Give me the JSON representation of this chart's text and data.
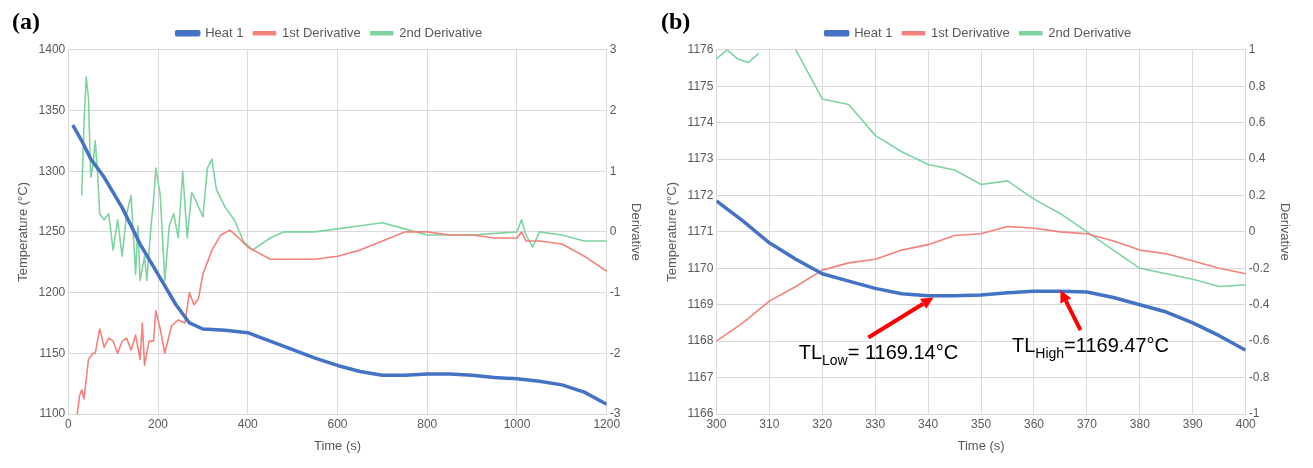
{
  "chart_data": [
    {
      "type": "line",
      "title": "(a)",
      "xlabel": "Time (s)",
      "ylabel": "Temperature (°C)",
      "y2label": "Derivative",
      "xlim": [
        0,
        1200
      ],
      "xticks": [
        0,
        200,
        400,
        600,
        800,
        1000,
        1200
      ],
      "ylim": [
        1100,
        1400
      ],
      "yticks": [
        1100,
        1150,
        1200,
        1250,
        1300,
        1350,
        1400
      ],
      "y2lim": [
        -3,
        3
      ],
      "y2ticks": [
        -3,
        -2,
        -1,
        0,
        1,
        2,
        3
      ],
      "grid": true,
      "legend": "top",
      "marker": "none",
      "line_style": "solid",
      "series": [
        {
          "name": "Heat 1",
          "color": "#4472c4",
          "x": [
            10,
            30,
            50,
            80,
            120,
            160,
            200,
            240,
            270,
            300,
            350,
            400,
            450,
            500,
            550,
            600,
            650,
            700,
            750,
            800,
            850,
            900,
            950,
            1000,
            1050,
            1100,
            1150,
            1200
          ],
          "values": [
            1338,
            1325,
            1310,
            1295,
            1270,
            1240,
            1215,
            1190,
            1175,
            1170,
            1169,
            1167,
            1160,
            1153,
            1146,
            1140,
            1135,
            1132,
            1132,
            1133,
            1133,
            1132,
            1130,
            1129,
            1127,
            1124,
            1118,
            1108
          ]
        },
        {
          "name": "1st Derivative",
          "color": "#f4817b",
          "axis": "y2",
          "x": [
            20,
            25,
            30,
            35,
            45,
            55,
            60,
            70,
            80,
            90,
            100,
            110,
            120,
            130,
            140,
            150,
            160,
            165,
            170,
            180,
            190,
            195,
            205,
            215,
            230,
            245,
            260,
            270,
            280,
            290,
            300,
            320,
            340,
            360,
            380,
            400,
            450,
            500,
            550,
            600,
            650,
            700,
            750,
            800,
            850,
            900,
            950,
            1000,
            1010,
            1020,
            1050,
            1100,
            1150,
            1200
          ],
          "values": [
            -3,
            -2.7,
            -2.6,
            -2.75,
            -2.1,
            -2,
            -2,
            -1.6,
            -1.9,
            -1.75,
            -1.8,
            -2,
            -1.8,
            -1.75,
            -1.95,
            -1.7,
            -2.1,
            -1.5,
            -2.2,
            -1.8,
            -1.8,
            -1.3,
            -1.6,
            -2,
            -1.55,
            -1.45,
            -1.5,
            -1,
            -1.2,
            -1.1,
            -0.7,
            -0.3,
            -0.05,
            0.03,
            -0.1,
            -0.25,
            -0.45,
            -0.45,
            -0.45,
            -0.4,
            -0.3,
            -0.15,
            0,
            0,
            -0.05,
            -0.05,
            -0.1,
            -0.1,
            0,
            -0.15,
            -0.15,
            -0.2,
            -0.4,
            -0.65
          ]
        },
        {
          "name": "2nd Derivative",
          "color": "#7fd3a0",
          "axis": "y2",
          "x": [
            30,
            35,
            40,
            45,
            50,
            55,
            60,
            65,
            70,
            80,
            90,
            100,
            110,
            120,
            130,
            140,
            150,
            155,
            160,
            170,
            175,
            185,
            190,
            195,
            205,
            215,
            225,
            235,
            245,
            255,
            265,
            275,
            285,
            300,
            310,
            320,
            330,
            350,
            370,
            390,
            410,
            450,
            480,
            550,
            600,
            650,
            700,
            750,
            800,
            900,
            1000,
            1010,
            1020,
            1035,
            1050,
            1100,
            1150,
            1200
          ],
          "values": [
            0.6,
            1.8,
            2.55,
            2.2,
            0.9,
            1.1,
            1.5,
            1,
            0.3,
            0.2,
            0.3,
            -0.3,
            0.2,
            -0.4,
            0.3,
            0.6,
            -0.7,
            0.1,
            -0.8,
            -0.4,
            -0.8,
            0.15,
            0.5,
            1.05,
            0.6,
            -0.8,
            0.1,
            0.3,
            -0.1,
            1,
            -0.1,
            0.65,
            0.5,
            0.25,
            1.05,
            1.2,
            0.7,
            0.4,
            0.2,
            -0.15,
            -0.3,
            -0.1,
            0,
            0,
            0.05,
            0.1,
            0.15,
            0.05,
            -0.05,
            -0.05,
            0,
            0.2,
            -0.05,
            -0.25,
            0,
            -0.05,
            -0.15,
            -0.15
          ]
        }
      ]
    },
    {
      "type": "line",
      "title": "(b)",
      "xlabel": "Time (s)",
      "ylabel": "Temperature (°C)",
      "y2label": "Derivative",
      "xlim": [
        300,
        400
      ],
      "xticks": [
        300,
        310,
        320,
        330,
        340,
        350,
        360,
        370,
        380,
        390,
        400
      ],
      "ylim": [
        1166,
        1176
      ],
      "yticks": [
        1166,
        1167,
        1168,
        1169,
        1170,
        1171,
        1172,
        1173,
        1174,
        1175,
        1176
      ],
      "y2lim": [
        -1,
        1
      ],
      "y2ticks": [
        -1,
        -0.8,
        -0.6,
        -0.4,
        -0.2,
        0,
        0.2,
        0.4,
        0.6,
        0.8,
        1
      ],
      "grid": true,
      "legend": "top",
      "marker": "none",
      "line_style": "solid",
      "annotations": [
        {
          "text": "TL$_{Low}$= 1169.14°C",
          "x": 341,
          "y": 1169.2
        },
        {
          "text": "TL$_{High}$=1169.47°C",
          "x": 365,
          "y": 1169.4
        }
      ],
      "series": [
        {
          "name": "Heat 1",
          "color": "#4472c4",
          "x": [
            300,
            305,
            310,
            315,
            320,
            325,
            330,
            335,
            340,
            345,
            350,
            355,
            360,
            365,
            370,
            375,
            380,
            385,
            390,
            395,
            400
          ],
          "values": [
            1171.85,
            1171.3,
            1170.7,
            1170.25,
            1169.85,
            1169.65,
            1169.45,
            1169.3,
            1169.25,
            1169.25,
            1169.27,
            1169.33,
            1169.37,
            1169.37,
            1169.35,
            1169.2,
            1169,
            1168.8,
            1168.5,
            1168.15,
            1167.75
          ]
        },
        {
          "name": "1st Derivative",
          "color": "#f4817b",
          "axis": "y2",
          "x": [
            300,
            305,
            310,
            315,
            320,
            325,
            330,
            335,
            340,
            345,
            350,
            355,
            360,
            365,
            370,
            375,
            380,
            385,
            390,
            395,
            400
          ],
          "values": [
            -0.6,
            -0.5,
            -0.38,
            -0.3,
            -0.21,
            -0.17,
            -0.15,
            -0.1,
            -0.07,
            -0.02,
            -0.01,
            0.03,
            0.02,
            0,
            -0.01,
            -0.05,
            -0.1,
            -0.12,
            -0.16,
            -0.2,
            -0.23
          ]
        },
        {
          "name": "2nd Derivative",
          "color": "#7fd3a0",
          "axis": "y2",
          "x": [
            300,
            302,
            304,
            306,
            308,
            311,
            315,
            320,
            325,
            330,
            335,
            340,
            345,
            350,
            355,
            360,
            365,
            370,
            375,
            380,
            385,
            390,
            395,
            400
          ],
          "values": [
            0.95,
            1,
            0.95,
            0.93,
            0.98,
            null,
            1,
            0.73,
            0.7,
            0.53,
            0.44,
            0.37,
            0.34,
            0.26,
            0.28,
            0.18,
            0.1,
            0,
            -0.1,
            -0.2,
            -0.23,
            -0.26,
            -0.3,
            -0.29
          ]
        }
      ]
    }
  ]
}
